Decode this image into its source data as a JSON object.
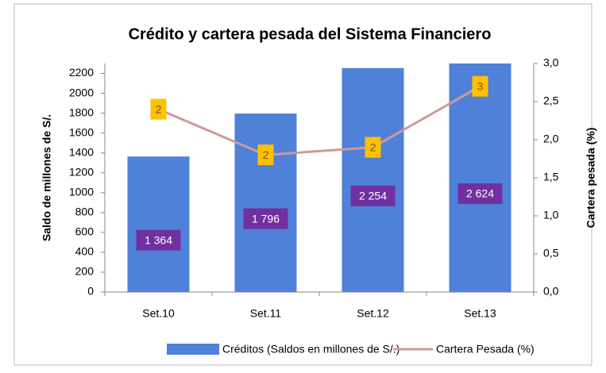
{
  "chart_data": {
    "type": "bar_line",
    "title": "Crédito y cartera pesada del Sistema Financiero",
    "y_label": "Saldo de millones de S/.",
    "y2_label": "Cartera pesada (%)",
    "categories": [
      "Set.10",
      "Set.11",
      "Set.12",
      "Set.13"
    ],
    "series": [
      {
        "name": "Créditos (Saldos en millones de S/.)",
        "type": "bar",
        "color": "#4f81d9",
        "values": [
          1364,
          1796,
          2254,
          2624
        ],
        "value_labels": [
          "1 364",
          "1 796",
          "2 254",
          "2 624"
        ]
      },
      {
        "name": "Cartera Pesada (%)",
        "type": "line",
        "axis": "y2",
        "color": "#d09999",
        "values": [
          2.4,
          1.8,
          1.9,
          2.7
        ],
        "value_labels": [
          "2",
          "2",
          "2",
          "3"
        ]
      }
    ],
    "ylim": [
      0,
      2300
    ],
    "yticks": [
      0,
      200,
      400,
      600,
      800,
      1000,
      1200,
      1400,
      1600,
      1800,
      2000,
      2200
    ],
    "y2lim": [
      0,
      3
    ],
    "y2ticks": [
      {
        "value": 0,
        "label": "0,0"
      },
      {
        "value": 0.5,
        "label": "0,5"
      },
      {
        "value": 1,
        "label": "1,0"
      },
      {
        "value": 1.5,
        "label": "1,5"
      },
      {
        "value": 2,
        "label": "2,0"
      },
      {
        "value": 2.5,
        "label": "2,5"
      },
      {
        "value": 3,
        "label": "3,0"
      }
    ],
    "legend": "bottom"
  }
}
